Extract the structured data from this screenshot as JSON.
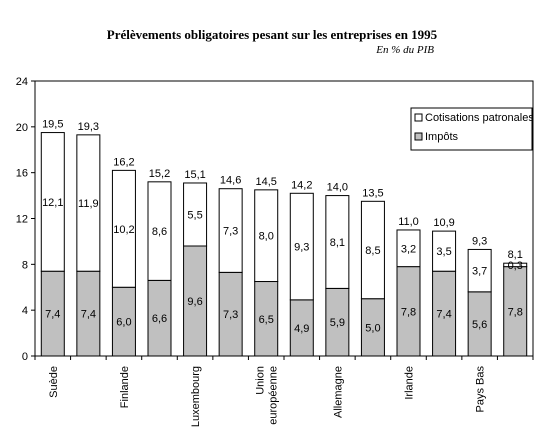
{
  "chart_data": {
    "type": "bar",
    "stacked": true,
    "title": "Prélèvements obligatoires pesant sur les entreprises en 1995",
    "subtitle": "En % du PIB",
    "categories": [
      "Suède",
      "",
      "Finlande",
      "",
      "Luxembourg",
      "",
      "Union européenne",
      "",
      "Allemagne",
      "",
      "Irlande",
      "",
      "Pays Bas",
      ""
    ],
    "category_lines": [
      [
        "Suède"
      ],
      [],
      [
        "Finlande"
      ],
      [],
      [
        "Luxembourg"
      ],
      [],
      [
        "Union",
        "européenne"
      ],
      [],
      [
        "Allemagne"
      ],
      [],
      [
        "Irlande"
      ],
      [],
      [
        "Pays Bas"
      ],
      []
    ],
    "series": [
      {
        "name": "Impôts",
        "color": "#c0c0c0",
        "values": [
          7.4,
          7.4,
          6.0,
          6.6,
          9.6,
          7.3,
          6.5,
          4.9,
          5.9,
          5.0,
          7.8,
          7.4,
          5.6,
          7.8
        ],
        "labels": [
          "7,4",
          "7,4",
          "6,0",
          "6,6",
          "9,6",
          "7,3",
          "6,5",
          "4,9",
          "5,9",
          "5,0",
          "7,8",
          "7,4",
          "5,6",
          "7,8"
        ]
      },
      {
        "name": "Cotisations patronales",
        "color": "#ffffff",
        "values": [
          12.1,
          11.9,
          10.2,
          8.6,
          5.5,
          7.3,
          8.0,
          9.3,
          8.1,
          8.5,
          3.2,
          3.5,
          3.7,
          0.3
        ],
        "labels": [
          "12,1",
          "11,9",
          "10,2",
          "8,6",
          "5,5",
          "7,3",
          "8,0",
          "9,3",
          "8,1",
          "8,5",
          "3,2",
          "3,5",
          "3,7",
          "0,3"
        ]
      }
    ],
    "totals": [
      19.5,
      19.3,
      16.2,
      15.2,
      15.1,
      14.6,
      14.5,
      14.2,
      14.0,
      13.5,
      11.0,
      10.9,
      9.3,
      8.1
    ],
    "total_labels": [
      "19,5",
      "19,3",
      "16,2",
      "15,2",
      "15,1",
      "14,6",
      "14,5",
      "14,2",
      "14,0",
      "13,5",
      "11,0",
      "10,9",
      "9,3",
      "8,1"
    ],
    "ylim": [
      0,
      24
    ],
    "yticks": [
      0,
      4,
      8,
      12,
      16,
      20,
      24
    ],
    "ytick_labels": [
      "0",
      "4",
      "8",
      "12",
      "16",
      "20",
      "24"
    ],
    "grid": false,
    "legend_position": "top-right",
    "legend_entries": [
      "Cotisations patronales",
      "Impôts"
    ]
  }
}
